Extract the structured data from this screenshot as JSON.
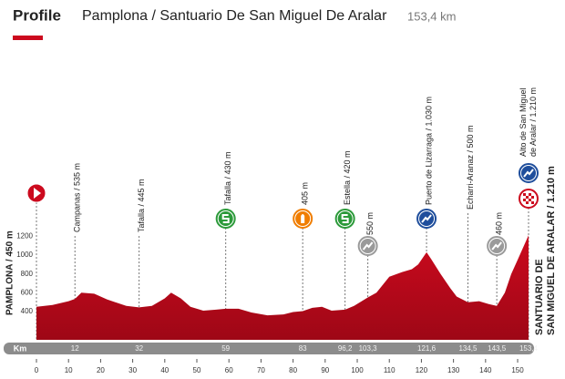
{
  "chart_data": {
    "type": "area",
    "heading": "Profile",
    "title": "Pamplona / Santuario De San Miguel De Aralar",
    "distance": "153,4 km",
    "color": "#cc0a1e",
    "x": [
      0,
      5,
      10,
      12,
      14,
      18,
      22,
      28,
      32,
      36,
      40,
      42,
      45,
      48,
      52,
      56,
      59,
      63,
      67,
      72,
      77,
      80,
      83,
      86,
      89,
      92,
      96.2,
      99,
      103.3,
      106,
      110,
      114,
      117,
      119,
      121.6,
      123,
      126,
      129,
      131,
      134.5,
      138,
      141,
      143.5,
      146,
      148,
      150,
      153.4
    ],
    "values": [
      450,
      470,
      510,
      535,
      600,
      590,
      530,
      460,
      445,
      460,
      540,
      600,
      540,
      450,
      410,
      420,
      430,
      430,
      390,
      360,
      370,
      395,
      405,
      440,
      450,
      410,
      420,
      460,
      550,
      600,
      770,
      820,
      850,
      900,
      1030,
      960,
      800,
      650,
      560,
      500,
      510,
      480,
      460,
      600,
      800,
      950,
      1210
    ],
    "xlim": [
      0,
      153.4
    ],
    "ylim": [
      100,
      1300
    ],
    "xticks": [
      0,
      10,
      20,
      30,
      40,
      50,
      60,
      70,
      80,
      90,
      100,
      110,
      120,
      130,
      140,
      150
    ],
    "yticks": [
      400,
      600,
      800,
      1000,
      1200
    ],
    "start_label": "PAMPLONA / 450 m",
    "finish_label": [
      "SANTUARIO DE",
      "SAN MIGUEL DE ARALAR / 1.210 m"
    ],
    "km_label": "Km",
    "waypoints": [
      {
        "km": 12,
        "lines": [
          "Campanas / 535 m"
        ]
      },
      {
        "km": 32,
        "lines": [
          "Tafalla / 445 m"
        ]
      },
      {
        "km": 59,
        "lines": [
          "Tafalla / 430 m"
        ]
      },
      {
        "km": 83,
        "lines": [
          "405 m"
        ]
      },
      {
        "km": {
          "value": 96.2,
          "label": "96,2"
        },
        "lines": [
          "Estella / 420 m"
        ]
      },
      {
        "km": {
          "value": 103.3,
          "label": "103,3"
        },
        "lines": [
          "550 m"
        ]
      },
      {
        "km": {
          "value": 121.6,
          "label": "121,6"
        },
        "lines": [
          "Puerto de Lizarraga / 1.030 m"
        ]
      },
      {
        "km": {
          "value": 134.5,
          "label": "134,5"
        },
        "lines": [
          "Echarri-Aranaz / 500 m"
        ]
      },
      {
        "km": {
          "value": 143.5,
          "label": "143,5"
        },
        "lines": [
          "460 m"
        ]
      },
      {
        "km": {
          "value": 153.4,
          "label": "153,4"
        },
        "lines": [
          "Alto de San Miguel",
          "de Aralar / 1.210 m"
        ]
      }
    ]
  }
}
